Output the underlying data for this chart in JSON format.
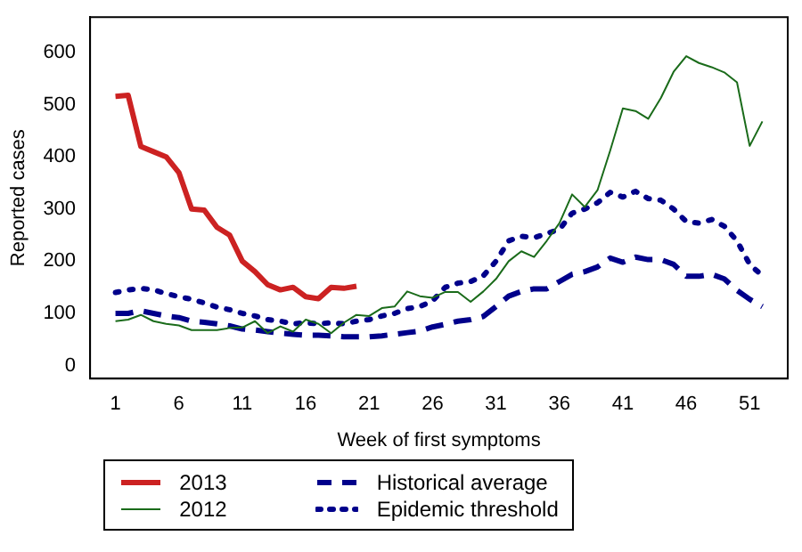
{
  "chart_data": {
    "type": "line",
    "xlabel": "Week of first symptoms",
    "ylabel": "Reported cases",
    "x": [
      1,
      2,
      3,
      4,
      5,
      6,
      7,
      8,
      9,
      10,
      11,
      12,
      13,
      14,
      15,
      16,
      17,
      18,
      19,
      20,
      21,
      22,
      23,
      24,
      25,
      26,
      27,
      28,
      29,
      30,
      31,
      32,
      33,
      34,
      35,
      36,
      37,
      38,
      39,
      40,
      41,
      42,
      43,
      44,
      45,
      46,
      47,
      48,
      49,
      50,
      51,
      52
    ],
    "xlim": [
      -1,
      54
    ],
    "xticks": [
      1,
      6,
      11,
      16,
      21,
      26,
      31,
      36,
      41,
      46,
      51
    ],
    "ylim": [
      -25,
      668
    ],
    "yticks": [
      0,
      100,
      200,
      300,
      400,
      500,
      600
    ],
    "grid": false,
    "legend": "bottom",
    "series": [
      {
        "name": "2013",
        "color": "#cc2222",
        "line_style": "solid",
        "x": [
          1,
          2,
          3,
          4,
          5,
          6,
          7,
          8,
          9,
          10,
          11,
          12,
          13,
          14,
          15,
          16,
          17,
          18,
          19,
          20
        ],
        "values": [
          516,
          518,
          420,
          410,
          400,
          370,
          300,
          298,
          265,
          250,
          200,
          180,
          155,
          145,
          150,
          132,
          128,
          150,
          148,
          152
        ]
      },
      {
        "name": "2012",
        "color": "#1a6b1a",
        "line_style": "solid",
        "values": [
          85,
          88,
          97,
          85,
          80,
          77,
          68,
          68,
          68,
          72,
          73,
          85,
          62,
          75,
          65,
          88,
          80,
          62,
          82,
          97,
          95,
          110,
          113,
          142,
          133,
          130,
          141,
          141,
          122,
          142,
          166,
          200,
          219,
          208,
          239,
          273,
          328,
          304,
          336,
          412,
          493,
          488,
          473,
          513,
          563,
          593,
          580,
          572,
          562,
          543,
          421,
          468
        ]
      },
      {
        "name": "Historical average",
        "color": "#00008b",
        "line_style": "dashed",
        "values": [
          100,
          100,
          105,
          100,
          95,
          92,
          85,
          83,
          80,
          76,
          70,
          68,
          65,
          62,
          60,
          58,
          58,
          57,
          55,
          55,
          55,
          57,
          60,
          63,
          66,
          74,
          79,
          85,
          88,
          94,
          113,
          133,
          142,
          147,
          147,
          161,
          175,
          180,
          189,
          206,
          198,
          208,
          203,
          203,
          194,
          171,
          171,
          175,
          166,
          144,
          127,
          113
        ]
      },
      {
        "name": "Epidemic threshold",
        "color": "#00008b",
        "line_style": "dotted",
        "values": [
          140,
          145,
          148,
          145,
          138,
          132,
          127,
          120,
          112,
          107,
          100,
          95,
          88,
          85,
          80,
          82,
          80,
          82,
          80,
          85,
          88,
          95,
          100,
          109,
          113,
          124,
          150,
          158,
          161,
          172,
          200,
          239,
          248,
          245,
          253,
          261,
          292,
          300,
          312,
          332,
          323,
          334,
          320,
          317,
          300,
          276,
          273,
          280,
          267,
          239,
          194,
          172
        ]
      }
    ]
  }
}
